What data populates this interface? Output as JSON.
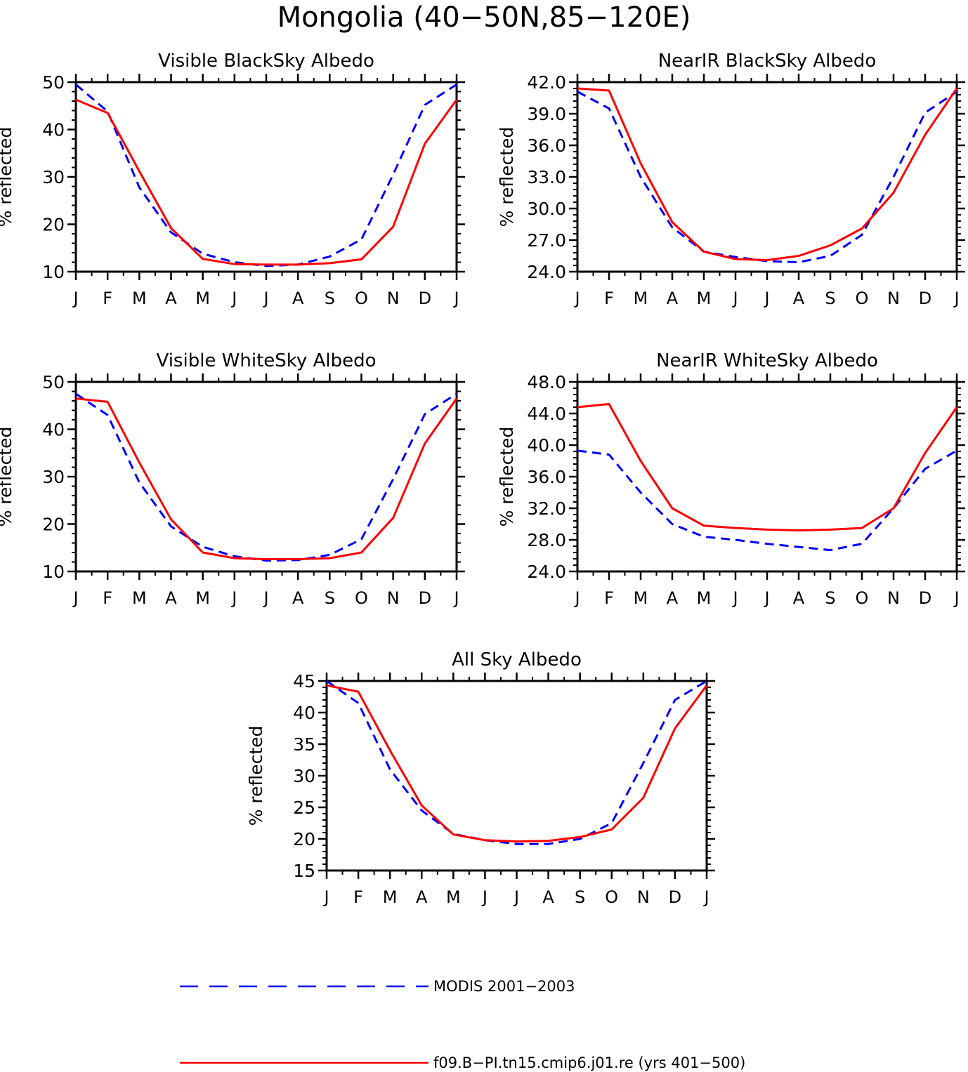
{
  "title": "Mongolia (40−50N,85−120E)",
  "legend": [
    {
      "label": "MODIS 2001−2003",
      "color": "#0000ff",
      "style": "dashed"
    },
    {
      "label": "f09.B−PI.tn15.cmip6.j01.re (yrs 401−500)",
      "color": "#ff0000",
      "style": "solid"
    }
  ],
  "chart_data": [
    {
      "type": "line",
      "title": "Visible BlackSky Albedo",
      "ylabel": "% reflected",
      "categories": [
        "J",
        "F",
        "M",
        "A",
        "M",
        "J",
        "J",
        "A",
        "S",
        "O",
        "N",
        "D",
        "J"
      ],
      "ylim": [
        10,
        50
      ],
      "yticks": [
        "10",
        "20",
        "30",
        "40",
        "50"
      ],
      "series": [
        {
          "name": "MODIS 2001−2003",
          "values": [
            49.5,
            43.8,
            27.8,
            18.3,
            13.8,
            12.0,
            11.2,
            11.5,
            13.2,
            16.8,
            30.5,
            45.2,
            49.5
          ]
        },
        {
          "name": "f09.B−PI.tn15.cmip6.j01.re (yrs 401−500)",
          "values": [
            46.3,
            43.5,
            31.2,
            19.2,
            12.7,
            11.6,
            11.5,
            11.5,
            11.8,
            12.6,
            19.5,
            37.0,
            46.3
          ]
        }
      ]
    },
    {
      "type": "line",
      "title": "NearIR BlackSky Albedo",
      "ylabel": "% reflected",
      "categories": [
        "J",
        "F",
        "M",
        "A",
        "M",
        "J",
        "J",
        "A",
        "S",
        "O",
        "N",
        "D",
        "J"
      ],
      "ylim": [
        24,
        42
      ],
      "yticks": [
        "24.0",
        "27.0",
        "30.0",
        "33.0",
        "36.0",
        "39.0",
        "42.0"
      ],
      "series": [
        {
          "name": "MODIS 2001−2003",
          "values": [
            41.1,
            39.5,
            33.0,
            28.2,
            25.9,
            25.4,
            25.0,
            24.9,
            25.5,
            27.5,
            33.0,
            39.1,
            41.1
          ]
        },
        {
          "name": "f09.B−PI.tn15.cmip6.j01.re (yrs 401−500)",
          "values": [
            41.4,
            41.2,
            34.3,
            28.7,
            25.9,
            25.2,
            25.1,
            25.5,
            26.5,
            28.1,
            31.5,
            37.0,
            41.4
          ]
        }
      ]
    },
    {
      "type": "line",
      "title": "Visible WhiteSky Albedo",
      "ylabel": "% reflected",
      "categories": [
        "J",
        "F",
        "M",
        "A",
        "M",
        "J",
        "J",
        "A",
        "S",
        "O",
        "N",
        "D",
        "J"
      ],
      "ylim": [
        10,
        50
      ],
      "yticks": [
        "10",
        "20",
        "30",
        "40",
        "50"
      ],
      "series": [
        {
          "name": "MODIS 2001−2003",
          "values": [
            47.5,
            43.0,
            28.8,
            19.5,
            15.2,
            13.2,
            12.3,
            12.4,
            13.5,
            16.8,
            29.5,
            43.2,
            47.5
          ]
        },
        {
          "name": "f09.B−PI.tn15.cmip6.j01.re (yrs 401−500)",
          "values": [
            46.5,
            45.8,
            33.0,
            21.0,
            14.0,
            12.8,
            12.6,
            12.6,
            12.8,
            14.0,
            21.3,
            37.0,
            46.5
          ]
        }
      ]
    },
    {
      "type": "line",
      "title": "NearIR WhiteSky Albedo",
      "ylabel": "% reflected",
      "categories": [
        "J",
        "F",
        "M",
        "A",
        "M",
        "J",
        "J",
        "A",
        "S",
        "O",
        "N",
        "D",
        "J"
      ],
      "ylim": [
        24,
        48
      ],
      "yticks": [
        "24.0",
        "28.0",
        "32.0",
        "36.0",
        "40.0",
        "44.0",
        "48.0"
      ],
      "series": [
        {
          "name": "MODIS 2001−2003",
          "values": [
            39.3,
            38.8,
            34.0,
            30.0,
            28.4,
            28.0,
            27.5,
            27.1,
            26.7,
            27.5,
            32.0,
            37.0,
            39.3
          ]
        },
        {
          "name": "f09.B−PI.tn15.cmip6.j01.re (yrs 401−500)",
          "values": [
            44.8,
            45.2,
            38.0,
            32.0,
            29.8,
            29.5,
            29.3,
            29.2,
            29.3,
            29.5,
            32.0,
            39.0,
            44.8
          ]
        }
      ]
    },
    {
      "type": "line",
      "title": "All Sky Albedo",
      "ylabel": "% reflected",
      "categories": [
        "J",
        "F",
        "M",
        "A",
        "M",
        "J",
        "J",
        "A",
        "S",
        "O",
        "N",
        "D",
        "J"
      ],
      "ylim": [
        15,
        45
      ],
      "yticks": [
        "15",
        "20",
        "25",
        "30",
        "35",
        "40",
        "45"
      ],
      "series": [
        {
          "name": "MODIS 2001−2003",
          "values": [
            45.0,
            41.5,
            31.0,
            24.5,
            20.8,
            19.8,
            19.2,
            19.2,
            20.0,
            22.5,
            32.0,
            42.0,
            45.0
          ]
        },
        {
          "name": "f09.B−PI.tn15.cmip6.j01.re (yrs 401−500)",
          "values": [
            44.3,
            43.3,
            34.0,
            25.3,
            20.7,
            19.8,
            19.6,
            19.7,
            20.3,
            21.5,
            26.5,
            37.5,
            44.3
          ]
        }
      ]
    }
  ]
}
